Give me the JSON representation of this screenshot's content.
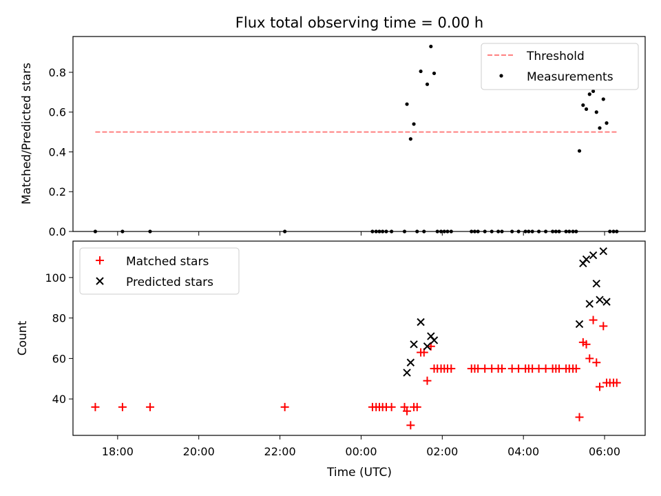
{
  "title": "Flux total observing time = 0.00 h",
  "xlabel": "Time (UTC)",
  "x_tick_labels": [
    "18:00",
    "20:00",
    "22:00",
    "00:00",
    "02:00",
    "04:00",
    "06:00"
  ],
  "chart_data": [
    {
      "type": "scatter",
      "title": "Flux total observing time = 0.00 h",
      "ylabel": "Matched/Predicted stars",
      "x_unit": "hours since 00:00 UTC",
      "xlim": [
        -7.1,
        7.0
      ],
      "ylim": [
        0,
        0.98
      ],
      "y_ticks": [
        0.0,
        0.2,
        0.4,
        0.6,
        0.8
      ],
      "y_tick_labels": [
        "0.0",
        "0.2",
        "0.4",
        "0.6",
        "0.8"
      ],
      "grid": false,
      "legend_position": "upper right",
      "legend": [
        "Threshold",
        "Measurements"
      ],
      "threshold": {
        "name": "Threshold",
        "y": 0.5,
        "x_range": [
          -6.55,
          6.3
        ],
        "color": "#ff8080",
        "style": "dashed"
      },
      "series": [
        {
          "name": "Measurements",
          "marker": "dot",
          "color": "#000000",
          "points": [
            [
              -6.55,
              0
            ],
            [
              -5.88,
              0
            ],
            [
              -5.2,
              0
            ],
            [
              -1.88,
              0
            ],
            [
              0.28,
              0
            ],
            [
              0.37,
              0
            ],
            [
              0.45,
              0
            ],
            [
              0.53,
              0
            ],
            [
              0.62,
              0
            ],
            [
              0.75,
              0
            ],
            [
              1.07,
              0
            ],
            [
              1.13,
              0.64
            ],
            [
              1.22,
              0.465
            ],
            [
              1.3,
              0.54
            ],
            [
              1.38,
              0
            ],
            [
              1.47,
              0.805
            ],
            [
              1.55,
              0
            ],
            [
              1.63,
              0.74
            ],
            [
              1.72,
              0.93
            ],
            [
              1.8,
              0.795
            ],
            [
              1.88,
              0
            ],
            [
              1.97,
              0
            ],
            [
              2.05,
              0
            ],
            [
              2.13,
              0
            ],
            [
              2.22,
              0
            ],
            [
              2.72,
              0
            ],
            [
              2.8,
              0
            ],
            [
              2.88,
              0
            ],
            [
              3.05,
              0
            ],
            [
              3.22,
              0
            ],
            [
              3.38,
              0
            ],
            [
              3.47,
              0
            ],
            [
              3.72,
              0
            ],
            [
              3.88,
              0
            ],
            [
              4.05,
              0
            ],
            [
              4.13,
              0
            ],
            [
              4.22,
              0
            ],
            [
              4.38,
              0
            ],
            [
              4.55,
              0
            ],
            [
              4.72,
              0
            ],
            [
              4.8,
              0
            ],
            [
              4.88,
              0
            ],
            [
              5.05,
              0
            ],
            [
              5.13,
              0
            ],
            [
              5.22,
              0
            ],
            [
              5.3,
              0
            ],
            [
              5.38,
              0.405
            ],
            [
              5.47,
              0.635
            ],
            [
              5.55,
              0.615
            ],
            [
              5.63,
              0.69
            ],
            [
              5.72,
              0.705
            ],
            [
              5.8,
              0.6
            ],
            [
              5.88,
              0.52
            ],
            [
              5.97,
              0.665
            ],
            [
              6.05,
              0.545
            ],
            [
              6.13,
              0
            ],
            [
              6.22,
              0
            ],
            [
              6.3,
              0
            ]
          ]
        }
      ]
    },
    {
      "type": "scatter",
      "ylabel": "Count",
      "xlabel": "Time (UTC)",
      "x_unit": "hours since 00:00 UTC",
      "xlim": [
        -7.1,
        7.0
      ],
      "ylim": [
        22,
        118
      ],
      "y_ticks": [
        40,
        60,
        80,
        100
      ],
      "y_tick_labels": [
        "40",
        "60",
        "80",
        "100"
      ],
      "x_ticks": [
        -6,
        -4,
        -2,
        0,
        2,
        4,
        6
      ],
      "x_tick_labels": [
        "18:00",
        "20:00",
        "22:00",
        "00:00",
        "02:00",
        "04:00",
        "06:00"
      ],
      "grid": false,
      "legend_position": "upper left",
      "legend": [
        "Matched stars",
        "Predicted stars"
      ],
      "series": [
        {
          "name": "Matched stars",
          "marker": "plus",
          "color": "#ff0000",
          "points": [
            [
              -6.55,
              36
            ],
            [
              -5.88,
              36
            ],
            [
              -5.2,
              36
            ],
            [
              -1.88,
              36
            ],
            [
              0.28,
              36
            ],
            [
              0.37,
              36
            ],
            [
              0.45,
              36
            ],
            [
              0.53,
              36
            ],
            [
              0.62,
              36
            ],
            [
              0.75,
              36
            ],
            [
              1.07,
              36
            ],
            [
              1.13,
              34
            ],
            [
              1.22,
              27
            ],
            [
              1.3,
              36
            ],
            [
              1.38,
              36
            ],
            [
              1.47,
              63
            ],
            [
              1.55,
              63
            ],
            [
              1.63,
              49
            ],
            [
              1.72,
              66
            ],
            [
              1.8,
              55
            ],
            [
              1.88,
              55
            ],
            [
              1.97,
              55
            ],
            [
              2.05,
              55
            ],
            [
              2.13,
              55
            ],
            [
              2.22,
              55
            ],
            [
              2.72,
              55
            ],
            [
              2.8,
              55
            ],
            [
              2.88,
              55
            ],
            [
              3.05,
              55
            ],
            [
              3.22,
              55
            ],
            [
              3.38,
              55
            ],
            [
              3.47,
              55
            ],
            [
              3.72,
              55
            ],
            [
              3.88,
              55
            ],
            [
              4.05,
              55
            ],
            [
              4.13,
              55
            ],
            [
              4.22,
              55
            ],
            [
              4.38,
              55
            ],
            [
              4.55,
              55
            ],
            [
              4.72,
              55
            ],
            [
              4.8,
              55
            ],
            [
              4.88,
              55
            ],
            [
              5.05,
              55
            ],
            [
              5.13,
              55
            ],
            [
              5.22,
              55
            ],
            [
              5.3,
              55
            ],
            [
              5.38,
              31
            ],
            [
              5.47,
              68
            ],
            [
              5.55,
              67
            ],
            [
              5.63,
              60
            ],
            [
              5.72,
              79
            ],
            [
              5.8,
              58
            ],
            [
              5.88,
              46
            ],
            [
              5.97,
              76
            ],
            [
              6.05,
              48
            ],
            [
              6.13,
              48
            ],
            [
              6.22,
              48
            ],
            [
              6.3,
              48
            ]
          ]
        },
        {
          "name": "Predicted stars",
          "marker": "x",
          "color": "#000000",
          "points": [
            [
              1.13,
              53
            ],
            [
              1.22,
              58
            ],
            [
              1.3,
              67
            ],
            [
              1.47,
              78
            ],
            [
              1.63,
              66
            ],
            [
              1.72,
              71
            ],
            [
              1.8,
              69
            ],
            [
              5.38,
              77
            ],
            [
              5.47,
              107
            ],
            [
              5.55,
              109
            ],
            [
              5.63,
              87
            ],
            [
              5.72,
              111
            ],
            [
              5.8,
              97
            ],
            [
              5.88,
              89
            ],
            [
              5.97,
              113
            ],
            [
              6.05,
              88
            ]
          ]
        }
      ]
    }
  ]
}
